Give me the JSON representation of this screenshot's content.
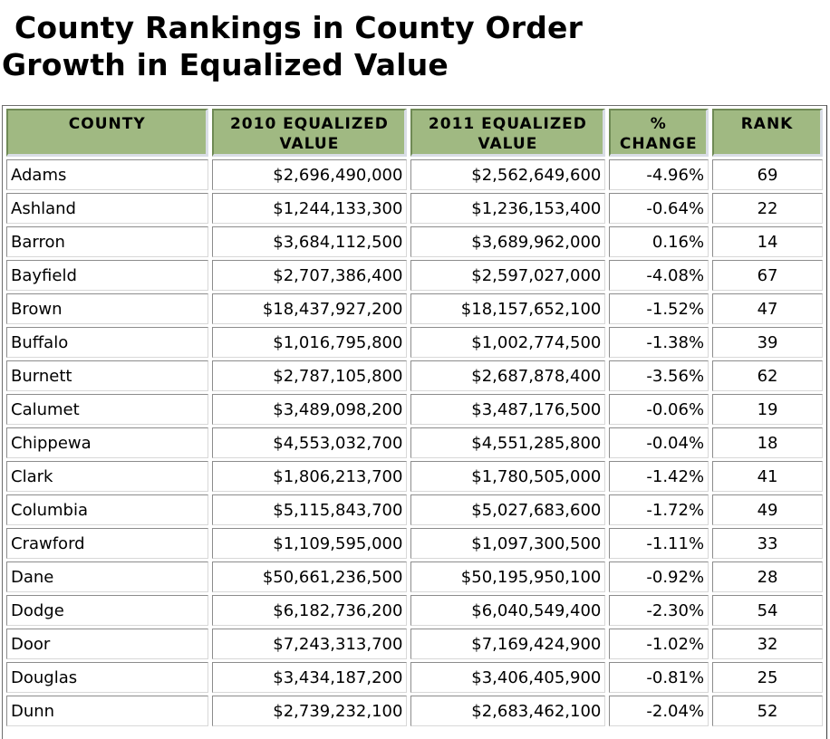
{
  "title_line1": "County Rankings in County Order",
  "title_line2": "Growth in Equalized Value",
  "headers": {
    "county": "COUNTY",
    "v2010_line1": "2010 EQUALIZED",
    "v2010_line2": "VALUE",
    "v2011_line1": "2011 EQUALIZED",
    "v2011_line2": "VALUE",
    "pct_line1": "%",
    "pct_line2": "CHANGE",
    "rank": "RANK"
  },
  "rows": [
    {
      "county": "Adams",
      "v2010": "$2,696,490,000",
      "v2011": "$2,562,649,600",
      "pct": "-4.96%",
      "rank": "69"
    },
    {
      "county": "Ashland",
      "v2010": "$1,244,133,300",
      "v2011": "$1,236,153,400",
      "pct": "-0.64%",
      "rank": "22"
    },
    {
      "county": "Barron",
      "v2010": "$3,684,112,500",
      "v2011": "$3,689,962,000",
      "pct": "0.16%",
      "rank": "14"
    },
    {
      "county": "Bayfield",
      "v2010": "$2,707,386,400",
      "v2011": "$2,597,027,000",
      "pct": "-4.08%",
      "rank": "67"
    },
    {
      "county": "Brown",
      "v2010": "$18,437,927,200",
      "v2011": "$18,157,652,100",
      "pct": "-1.52%",
      "rank": "47"
    },
    {
      "county": "Buffalo",
      "v2010": "$1,016,795,800",
      "v2011": "$1,002,774,500",
      "pct": "-1.38%",
      "rank": "39"
    },
    {
      "county": "Burnett",
      "v2010": "$2,787,105,800",
      "v2011": "$2,687,878,400",
      "pct": "-3.56%",
      "rank": "62"
    },
    {
      "county": "Calumet",
      "v2010": "$3,489,098,200",
      "v2011": "$3,487,176,500",
      "pct": "-0.06%",
      "rank": "19"
    },
    {
      "county": "Chippewa",
      "v2010": "$4,553,032,700",
      "v2011": "$4,551,285,800",
      "pct": "-0.04%",
      "rank": "18"
    },
    {
      "county": "Clark",
      "v2010": "$1,806,213,700",
      "v2011": "$1,780,505,000",
      "pct": "-1.42%",
      "rank": "41"
    },
    {
      "county": "Columbia",
      "v2010": "$5,115,843,700",
      "v2011": "$5,027,683,600",
      "pct": "-1.72%",
      "rank": "49"
    },
    {
      "county": "Crawford",
      "v2010": "$1,109,595,000",
      "v2011": "$1,097,300,500",
      "pct": "-1.11%",
      "rank": "33"
    },
    {
      "county": "Dane",
      "v2010": "$50,661,236,500",
      "v2011": "$50,195,950,100",
      "pct": "-0.92%",
      "rank": "28"
    },
    {
      "county": "Dodge",
      "v2010": "$6,182,736,200",
      "v2011": "$6,040,549,400",
      "pct": "-2.30%",
      "rank": "54"
    },
    {
      "county": "Door",
      "v2010": "$7,243,313,700",
      "v2011": "$7,169,424,900",
      "pct": "-1.02%",
      "rank": "32"
    },
    {
      "county": "Douglas",
      "v2010": "$3,434,187,200",
      "v2011": "$3,406,405,900",
      "pct": "-0.81%",
      "rank": "25"
    },
    {
      "county": "Dunn",
      "v2010": "$2,739,232,100",
      "v2011": "$2,683,462,100",
      "pct": "-2.04%",
      "rank": "52"
    }
  ]
}
